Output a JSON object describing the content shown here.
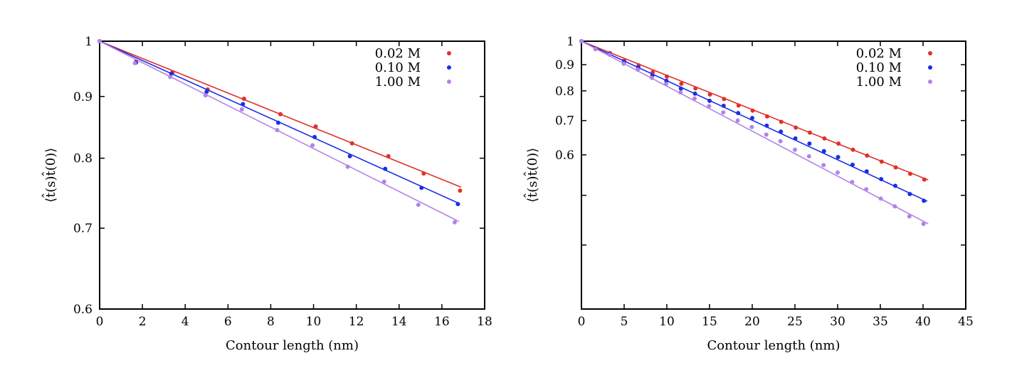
{
  "colors": {
    "0.02 M": "#e0302a",
    "0.10 M": "#1a2ee8",
    "1.00 M": "#b184e6"
  },
  "chart_data": [
    {
      "type": "scatter",
      "yscale": "log",
      "xlabel": "Contour length (nm)",
      "ylabel": "⟨t̂(s)t̂(0)⟩",
      "xlim": [
        0,
        18
      ],
      "ylim": [
        0.6,
        1
      ],
      "xticks": [
        0,
        2,
        4,
        6,
        8,
        10,
        12,
        14,
        16,
        18
      ],
      "yticks": [
        0.6,
        0.7,
        0.8,
        0.9,
        1
      ],
      "ytick_labels": [
        "0.6",
        "0.7",
        "0.8",
        "0.9",
        "1"
      ],
      "legend": "top-right",
      "series": [
        {
          "name": "0.02 M",
          "x": [
            0,
            1.7,
            3.4,
            5.05,
            6.75,
            8.45,
            10.1,
            11.8,
            13.5,
            15.15,
            16.85
          ],
          "y": [
            1.0,
            0.962,
            0.942,
            0.912,
            0.896,
            0.87,
            0.85,
            0.823,
            0.803,
            0.777,
            0.752
          ],
          "fit": {
            "x": [
              0,
              16.9
            ],
            "y": [
              1.0,
              0.757
            ]
          }
        },
        {
          "name": "0.10 M",
          "x": [
            0,
            1.7,
            3.35,
            5.0,
            6.7,
            8.35,
            10.05,
            11.7,
            13.35,
            15.05,
            16.75
          ],
          "y": [
            1.0,
            0.96,
            0.94,
            0.908,
            0.887,
            0.856,
            0.833,
            0.803,
            0.784,
            0.756,
            0.733
          ],
          "fit": {
            "x": [
              0,
              16.8
            ],
            "y": [
              1.0,
              0.734
            ]
          }
        },
        {
          "name": "1.00 M",
          "x": [
            0,
            1.65,
            3.3,
            4.95,
            6.65,
            8.3,
            9.95,
            11.6,
            13.3,
            14.9,
            16.6
          ],
          "y": [
            1.0,
            0.959,
            0.934,
            0.902,
            0.878,
            0.844,
            0.82,
            0.787,
            0.765,
            0.732,
            0.708
          ],
          "fit": {
            "x": [
              0,
              16.8
            ],
            "y": [
              1.0,
              0.709
            ]
          }
        }
      ]
    },
    {
      "type": "scatter",
      "yscale": "log",
      "xlabel": "Contour length (nm)",
      "ylabel": "⟨t̂(s)t̂(0)⟩",
      "xlim": [
        0,
        45
      ],
      "ylim": [
        0.3,
        1
      ],
      "xticks": [
        0,
        5,
        10,
        15,
        20,
        25,
        30,
        35,
        40,
        45
      ],
      "yticks": [
        0.4,
        0.5,
        0.6,
        0.7,
        0.8,
        0.9,
        1
      ],
      "ytick_labels": [
        "",
        "",
        "0.6",
        "0.7",
        "0.8",
        "0.9",
        "1"
      ],
      "legend": "top-right",
      "series": [
        {
          "name": "0.02 M",
          "x": [
            0,
            1.7,
            3.35,
            5.0,
            6.7,
            8.35,
            10.0,
            11.7,
            13.35,
            15.05,
            16.7,
            18.4,
            20.05,
            21.75,
            23.4,
            25.1,
            26.75,
            28.45,
            30.1,
            31.8,
            33.45,
            35.15,
            36.8,
            38.5,
            40.15
          ],
          "y": [
            1.0,
            0.968,
            0.947,
            0.916,
            0.897,
            0.87,
            0.853,
            0.826,
            0.809,
            0.787,
            0.771,
            0.749,
            0.732,
            0.713,
            0.696,
            0.678,
            0.663,
            0.646,
            0.631,
            0.614,
            0.598,
            0.582,
            0.567,
            0.551,
            0.537
          ],
          "fit": {
            "x": [
              0,
              40.6
            ],
            "y": [
              1.0,
              0.536
            ]
          }
        },
        {
          "name": "0.10 M",
          "x": [
            0,
            1.65,
            3.3,
            5.0,
            6.65,
            8.3,
            9.95,
            11.65,
            13.3,
            15.0,
            16.65,
            18.35,
            20.0,
            21.7,
            23.35,
            25.05,
            26.7,
            28.4,
            30.05,
            31.75,
            33.4,
            35.1,
            36.75,
            38.45,
            40.1
          ],
          "y": [
            1.0,
            0.966,
            0.945,
            0.911,
            0.889,
            0.857,
            0.837,
            0.808,
            0.79,
            0.765,
            0.748,
            0.724,
            0.708,
            0.684,
            0.666,
            0.646,
            0.631,
            0.61,
            0.594,
            0.574,
            0.557,
            0.538,
            0.522,
            0.503,
            0.488
          ],
          "fit": {
            "x": [
              0,
              40.5
            ],
            "y": [
              1.0,
              0.487
            ]
          }
        },
        {
          "name": "1.00 M",
          "x": [
            0,
            1.65,
            3.3,
            4.95,
            6.6,
            8.25,
            9.9,
            11.6,
            13.25,
            14.95,
            16.6,
            18.3,
            19.95,
            21.65,
            23.3,
            25.0,
            26.65,
            28.35,
            30.0,
            31.7,
            33.35,
            35.05,
            36.7,
            38.4,
            40.05
          ],
          "y": [
            1.0,
            0.965,
            0.941,
            0.904,
            0.88,
            0.848,
            0.825,
            0.794,
            0.773,
            0.747,
            0.726,
            0.7,
            0.68,
            0.657,
            0.638,
            0.614,
            0.596,
            0.573,
            0.554,
            0.531,
            0.514,
            0.493,
            0.476,
            0.455,
            0.44
          ],
          "fit": {
            "x": [
              0,
              40.6
            ],
            "y": [
              1.0,
              0.44
            ]
          }
        }
      ]
    }
  ]
}
